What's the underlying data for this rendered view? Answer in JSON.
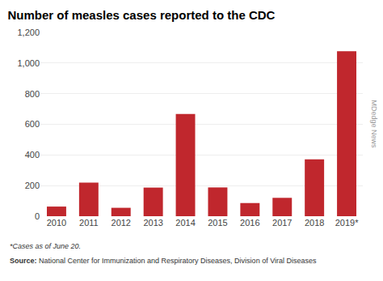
{
  "chart_data": {
    "type": "bar",
    "title": "Number of measles cases reported to the CDC",
    "categories": [
      "2010",
      "2011",
      "2012",
      "2013",
      "2014",
      "2015",
      "2016",
      "2017",
      "2018",
      "2019*"
    ],
    "values": [
      63,
      220,
      55,
      187,
      667,
      188,
      86,
      120,
      372,
      1077
    ],
    "color": "#c0272d",
    "ylim": [
      0,
      1200
    ],
    "yticks": [
      0,
      200,
      400,
      600,
      800,
      {
        "value": 1000,
        "label": "1,000"
      },
      {
        "value": 1200,
        "label": "1,200"
      }
    ],
    "grid": true,
    "annotations": [
      "*Cases as of June 20.",
      "Source:",
      "National Center for Immunization and Respiratory Diseases, Division of Viral Diseases",
      "MDedge News"
    ]
  }
}
